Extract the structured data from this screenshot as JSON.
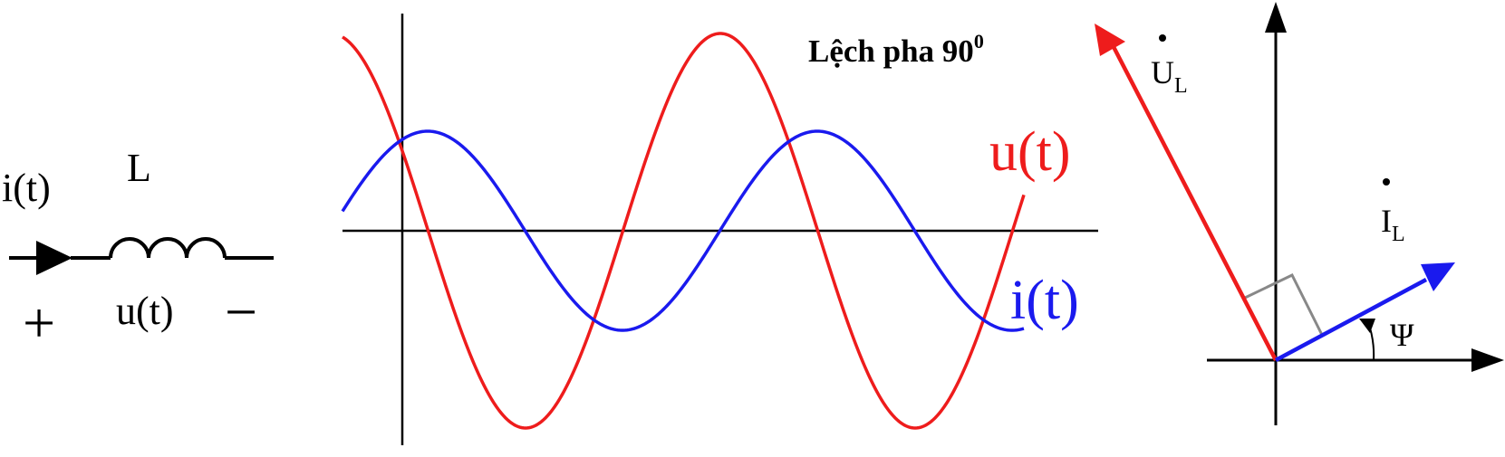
{
  "circuit": {
    "current_label": "i(t)",
    "inductor_label": "L",
    "voltage_label": "u(t)",
    "plus_sign": "+",
    "minus_sign": "−"
  },
  "waveform": {
    "title_main": "Lệch pha 90",
    "title_sup": "0",
    "voltage_label": "u(t)",
    "current_label": "i(t)",
    "voltage_color": "#ee1c1c",
    "current_color": "#1a1aee"
  },
  "phasor": {
    "voltage_label": "U",
    "voltage_sub": "L",
    "current_label": "I",
    "current_sub": "L",
    "angle_label": "Ψ",
    "voltage_color": "#ee1c1c",
    "current_color": "#1a1aee"
  }
}
